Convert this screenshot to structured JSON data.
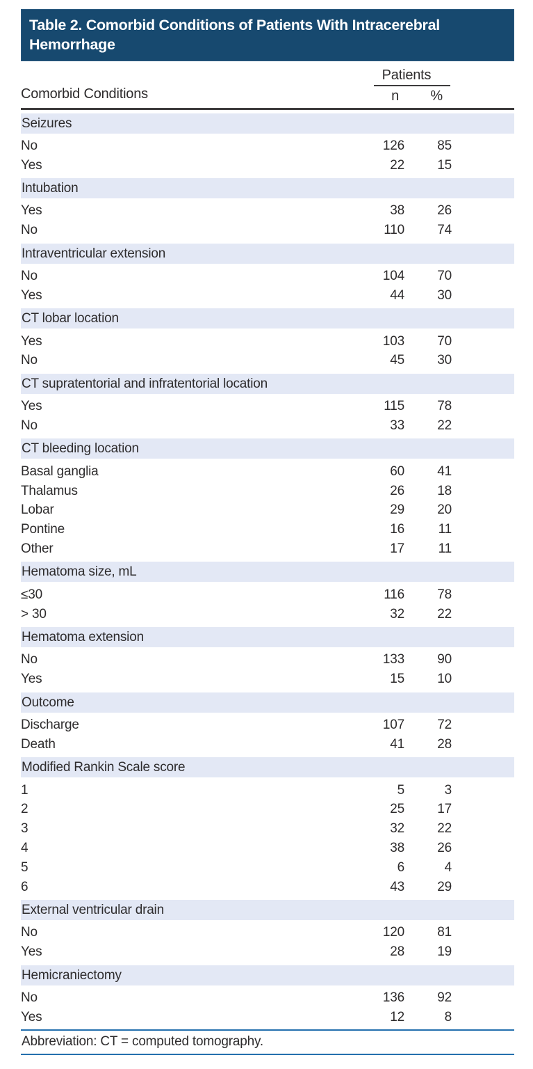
{
  "colors": {
    "title_bg": "#17496F",
    "title_text": "#ffffff",
    "band_bg": "#E3E8F5",
    "dark_rule": "#3d3b3c",
    "blue_rule": "#2470AE",
    "body_text": "#2e2c2d"
  },
  "table": {
    "title": "Table 2. Comorbid Conditions of Patients With Intracerebral Hemorrhage",
    "title_lines": [
      "Table 2. Comorbid Conditions of Patients With Intracerebral",
      "Hemorrhage"
    ],
    "row_header": "Comorbid Conditions",
    "col_group_header": "Patients",
    "col_headers": {
      "n": "n",
      "pct": "%"
    },
    "sections": [
      {
        "label": "Seizures",
        "rows": [
          [
            "No",
            "126",
            "85"
          ],
          [
            "Yes",
            "22",
            "15"
          ]
        ]
      },
      {
        "label": "Intubation",
        "rows": [
          [
            "Yes",
            "38",
            "26"
          ],
          [
            "No",
            "110",
            "74"
          ]
        ]
      },
      {
        "label": "Intraventricular extension",
        "rows": [
          [
            "No",
            "104",
            "70"
          ],
          [
            "Yes",
            "44",
            "30"
          ]
        ]
      },
      {
        "label": "CT lobar location",
        "rows": [
          [
            "Yes",
            "103",
            "70"
          ],
          [
            "No",
            "45",
            "30"
          ]
        ]
      },
      {
        "label": "CT supratentorial and infratentorial location",
        "rows": [
          [
            "Yes",
            "115",
            "78"
          ],
          [
            "No",
            "33",
            "22"
          ]
        ]
      },
      {
        "label": "CT bleeding location",
        "rows": [
          [
            "Basal ganglia",
            "60",
            "41"
          ],
          [
            "Thalamus",
            "26",
            "18"
          ],
          [
            "Lobar",
            "29",
            "20"
          ],
          [
            "Pontine",
            "16",
            "11"
          ],
          [
            "Other",
            "17",
            "11"
          ]
        ]
      },
      {
        "label": "Hematoma size, mL",
        "rows": [
          [
            "≤30",
            "116",
            "78"
          ],
          [
            "> 30",
            "32",
            "22"
          ]
        ]
      },
      {
        "label": "Hematoma extension",
        "rows": [
          [
            "No",
            "133",
            "90"
          ],
          [
            "Yes",
            "15",
            "10"
          ]
        ]
      },
      {
        "label": "Outcome",
        "rows": [
          [
            "Discharge",
            "107",
            "72"
          ],
          [
            "Death",
            "41",
            "28"
          ]
        ]
      },
      {
        "label": "Modified Rankin Scale score",
        "rows": [
          [
            "1",
            "5",
            "3"
          ],
          [
            "2",
            "25",
            "17"
          ],
          [
            "3",
            "32",
            "22"
          ],
          [
            "4",
            "38",
            "26"
          ],
          [
            "5",
            "6",
            "4"
          ],
          [
            "6",
            "43",
            "29"
          ]
        ]
      },
      {
        "label": "External ventricular drain",
        "rows": [
          [
            "No",
            "120",
            "81"
          ],
          [
            "Yes",
            "28",
            "19"
          ]
        ]
      },
      {
        "label": "Hemicraniectomy",
        "rows": [
          [
            "No",
            "136",
            "92"
          ],
          [
            "Yes",
            "12",
            "8"
          ]
        ]
      }
    ],
    "footnote": "Abbreviation: CT = computed tomography."
  }
}
